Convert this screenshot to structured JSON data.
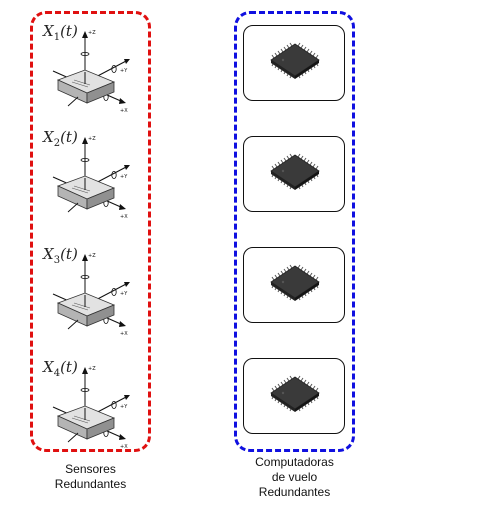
{
  "sensors": {
    "items": [
      {
        "label_main": "X",
        "label_sub": "1",
        "label_arg": "(t)"
      },
      {
        "label_main": "X",
        "label_sub": "2",
        "label_arg": "(t)"
      },
      {
        "label_main": "X",
        "label_sub": "3",
        "label_arg": "(t)"
      },
      {
        "label_main": "X",
        "label_sub": "4",
        "label_arg": "(t)"
      }
    ],
    "axis_labels": {
      "z": "+Z",
      "y": "+Y",
      "x": "+X"
    },
    "caption_line1": "Sensores",
    "caption_line2": "Redundantes",
    "border_color": "#e01010"
  },
  "computers": {
    "chip_icons": [
      "chip-icon",
      "chip-icon",
      "chip-icon",
      "chip-icon"
    ],
    "caption_line1": "Computadoras",
    "caption_line2": "de vuelo",
    "caption_line3": "Redundantes",
    "border_color": "#1010e0"
  }
}
